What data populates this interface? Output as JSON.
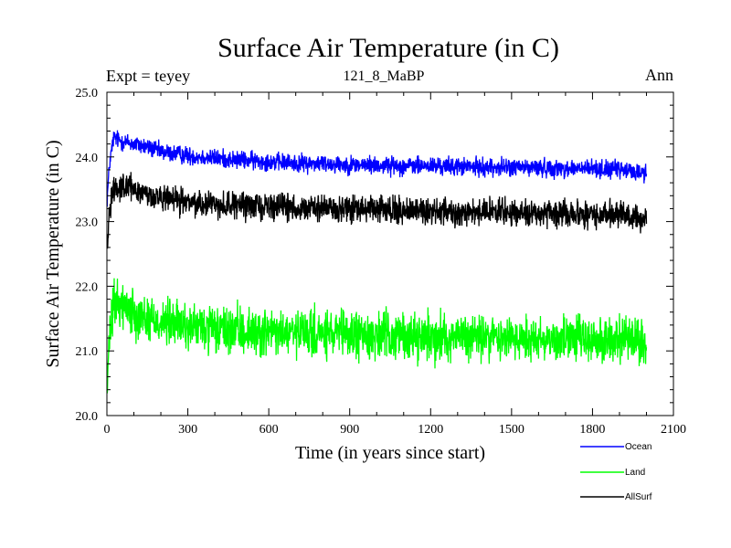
{
  "chart_data": {
    "type": "line",
    "title": "Surface Air Temperature (in C)",
    "subtitle": "121_8_MaBP",
    "left_label": "Expt = teyey",
    "right_label": "Ann",
    "xlabel": "Time (in years since start)",
    "ylabel": "Surface Air Temperature (in C)",
    "xlim": [
      0,
      2100
    ],
    "ylim": [
      20.0,
      25.0
    ],
    "xticks": [
      0,
      300,
      600,
      900,
      1200,
      1500,
      1800,
      2100
    ],
    "xtick_labels": [
      "0",
      "300",
      "600",
      "900",
      "1200",
      "1500",
      "1800",
      "2100"
    ],
    "yticks": [
      20.0,
      21.0,
      22.0,
      23.0,
      24.0,
      25.0
    ],
    "ytick_labels": [
      "20.0",
      "21.0",
      "22.0",
      "23.0",
      "24.0",
      "25.0"
    ],
    "grid": false,
    "legend_position": "bottom-right",
    "series": [
      {
        "name": "Ocean",
        "color": "#0000ff",
        "x": [
          0,
          10,
          25,
          50,
          100,
          150,
          200,
          300,
          400,
          500,
          600,
          700,
          800,
          900,
          1000,
          1100,
          1200,
          1300,
          1400,
          1500,
          1600,
          1700,
          1800,
          1900,
          2000
        ],
        "values": [
          23.3,
          23.9,
          24.3,
          24.25,
          24.2,
          24.15,
          24.08,
          24.02,
          23.98,
          23.95,
          23.93,
          23.9,
          23.9,
          23.88,
          23.87,
          23.86,
          23.86,
          23.85,
          23.84,
          23.84,
          23.83,
          23.82,
          23.82,
          23.8,
          23.75
        ],
        "noise": 0.07
      },
      {
        "name": "Land",
        "color": "#00ff00",
        "x": [
          0,
          10,
          25,
          50,
          100,
          150,
          200,
          300,
          400,
          500,
          600,
          700,
          800,
          900,
          1000,
          1100,
          1200,
          1300,
          1400,
          1500,
          1600,
          1700,
          1800,
          1900,
          2000
        ],
        "values": [
          20.3,
          21.2,
          21.7,
          21.75,
          21.6,
          21.5,
          21.45,
          21.38,
          21.32,
          21.3,
          21.28,
          21.26,
          21.25,
          21.24,
          21.24,
          21.23,
          21.22,
          21.22,
          21.21,
          21.2,
          21.2,
          21.19,
          21.18,
          21.17,
          21.1
        ],
        "noise": 0.18
      },
      {
        "name": "AllSurf",
        "color": "#000000",
        "x": [
          0,
          10,
          25,
          50,
          100,
          150,
          200,
          300,
          400,
          500,
          600,
          700,
          800,
          900,
          1000,
          1100,
          1200,
          1300,
          1400,
          1500,
          1600,
          1700,
          1800,
          1900,
          2000
        ],
        "values": [
          22.6,
          23.2,
          23.55,
          23.55,
          23.5,
          23.42,
          23.35,
          23.3,
          23.27,
          23.25,
          23.24,
          23.22,
          23.2,
          23.19,
          23.18,
          23.17,
          23.16,
          23.15,
          23.15,
          23.14,
          23.13,
          23.12,
          23.11,
          23.1,
          23.0
        ],
        "noise": 0.1
      }
    ]
  }
}
